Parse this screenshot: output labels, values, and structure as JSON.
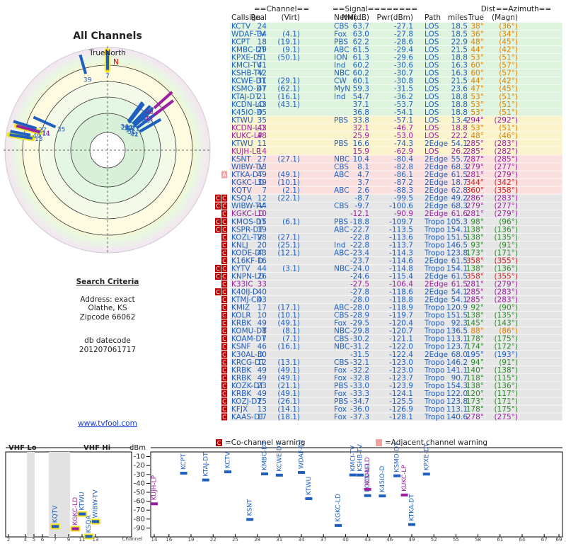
{
  "left": {
    "title": "All Channels",
    "north_label": "TrueNorth",
    "north_mark": "N",
    "criteria_title": "Search Criteria",
    "criteria": [
      "Address: exact",
      "Olathe, KS",
      "Zipcode 66062"
    ],
    "db_title": "db datecode",
    "db_code": "201207061717",
    "link": "www.tvfool.com"
  },
  "table": {
    "group_headers": [
      "==Channel==",
      "==Signal========",
      "Dist",
      "==Azimuth=="
    ],
    "headers": [
      "Callsign",
      "Real",
      "(Virt)",
      "Netwk",
      "NM(dB)",
      "Pwr(dBm)",
      "Path",
      "miles",
      "True",
      "(Magn)"
    ],
    "rows": [
      [
        "KCTV",
        "24",
        null,
        "CBS",
        "63.7",
        "-27.1",
        "LOS",
        "18.5",
        "38°",
        "(36°)"
      ],
      [
        "WDAF-TV",
        "34",
        "(4.1)",
        "Fox",
        "63.0",
        "-27.8",
        "LOS",
        "18.5",
        "36°",
        "(34°)"
      ],
      [
        "KCPT",
        "18",
        "(19.1)",
        "PBS",
        "62.2",
        "-28.6",
        "LOS",
        "22.9",
        "48°",
        "(45°)"
      ],
      [
        "KMBC-DT",
        "29",
        "(9.1)",
        "ABC",
        "61.5",
        "-29.4",
        "LOS",
        "21.5",
        "44°",
        "(42°)"
      ],
      [
        "KPXE-DT",
        "51",
        "(50.1)",
        "ION",
        "61.3",
        "-29.6",
        "LOS",
        "18.8",
        "53°",
        "(51°)"
      ],
      [
        "KMCI-TV",
        "41",
        null,
        "Ind",
        "60.2",
        "-30.6",
        "LOS",
        "16.3",
        "60°",
        "(57°)"
      ],
      [
        "KSHB-TV",
        "42",
        null,
        "NBC",
        "60.2",
        "-30.7",
        "LOS",
        "16.3",
        "60°",
        "(57°)"
      ],
      [
        "KCWE-DT",
        "31",
        "(29.1)",
        "CW",
        "60.1",
        "-30.8",
        "LOS",
        "21.5",
        "44°",
        "(42°)"
      ],
      [
        "KSMO-DT",
        "47",
        "(62.1)",
        "MyN",
        "59.3",
        "-31.5",
        "LOS",
        "23.6",
        "47°",
        "(45°)"
      ],
      [
        "KTAJ-DT",
        "21",
        "(16.1)",
        "Ind",
        "54.7",
        "-36.2",
        "LOS",
        "18.8",
        "53°",
        "(51°)"
      ],
      [
        "KCDN-LD",
        "43",
        "(43.1)",
        null,
        "37.1",
        "-53.7",
        "LOS",
        "18.8",
        "53°",
        "(51°)"
      ],
      [
        "K45IO-D",
        "45",
        null,
        null,
        "36.8",
        "-54.1",
        "LOS",
        "18.8",
        "53°",
        "(51°)"
      ],
      [
        "KTWU",
        "35",
        null,
        "PBS",
        "33.8",
        "-57.1",
        "LOS",
        "13.4",
        "294°",
        "(292°)"
      ],
      [
        "KCDN-LD",
        "43",
        null,
        null,
        "32.1",
        "-46.7",
        "LOS",
        "18.8",
        "53°",
        "(51°)"
      ],
      [
        "KUKC-LP",
        "48",
        null,
        null,
        "25.9",
        "-53.0",
        "LOS",
        "22.2",
        "48°",
        "(46°)"
      ],
      [
        "KTWU",
        "11",
        null,
        "PBS",
        "16.6",
        "-74.3",
        "2Edge",
        "54.1",
        "285°",
        "(283°)"
      ],
      [
        "KUJH-LP",
        "14",
        null,
        null,
        "15.9",
        "-62.9",
        "LOS",
        "26.2",
        "285°",
        "(282°)"
      ],
      [
        "KSNT",
        "27",
        "(27.1)",
        "NBC",
        "10.4",
        "-80.4",
        "2Edge",
        "55.7",
        "287°",
        "(285°)"
      ],
      [
        "WIBW-TV",
        "13",
        null,
        "CBS",
        "8.1",
        "-82.8",
        "2Edge",
        "68.3",
        "279°",
        "(277°)"
      ],
      [
        "KTKA-DT",
        "49",
        "(49.1)",
        "ABC",
        "4.7",
        "-86.1",
        "2Edge",
        "61.5",
        "281°",
        "(279°)"
      ],
      [
        "KGKC-LD",
        "39",
        "(10.1)",
        null,
        "3.7",
        "-87.2",
        "2Edge",
        "18.7",
        "344°",
        "(342°)"
      ],
      [
        "KQTV",
        "7",
        "(2.1)",
        "ABC",
        "2.6",
        "-88.3",
        "2Edge",
        "62.8",
        "360°",
        "(358°)"
      ],
      [
        "KSQA",
        "12",
        "(22.1)",
        null,
        "-8.7",
        "-99.5",
        "2Edge",
        "49.2",
        "286°",
        "(283°)"
      ],
      [
        "WIBW-TV",
        "44",
        null,
        "CBS",
        "-9.7",
        "-100.6",
        "2Edge",
        "68.3",
        "279°",
        "(277°)"
      ],
      [
        "KGKC-LD",
        "10",
        null,
        null,
        "-12.1",
        "-90.9",
        "2Edge",
        "61.6",
        "281°",
        "(279°)"
      ],
      [
        "KMOS-DT",
        "15",
        "(6.1)",
        "PBS",
        "-18.8",
        "-109.7",
        "Tropo",
        "105.3",
        "98°",
        "(96°)"
      ],
      [
        "KSPR-DT",
        "19",
        null,
        "ABC",
        "-22.7",
        "-113.5",
        "Tropo",
        "154.1",
        "138°",
        "(136°)"
      ],
      [
        "KOZL-TV",
        "28",
        "(27.1)",
        null,
        "-22.8",
        "-113.6",
        "Tropo",
        "151.5",
        "138°",
        "(135°)"
      ],
      [
        "KNLJ",
        "20",
        "(25.1)",
        "Ind",
        "-22.8",
        "-113.7",
        "Tropo",
        "146.5",
        "93°",
        "(91°)"
      ],
      [
        "KODE-DT",
        "43",
        "(12.1)",
        "ABC",
        "-23.4",
        "-114.3",
        "Tropo",
        "123.8",
        "173°",
        "(171°)"
      ],
      [
        "K16KF-D",
        "16",
        null,
        null,
        "-23.7",
        "-114.6",
        "2Edge",
        "61.5",
        "358°",
        "(355°)"
      ],
      [
        "KYTV",
        "44",
        "(3.1)",
        "NBC",
        "-24.0",
        "-114.8",
        "Tropo",
        "154.1",
        "138°",
        "(136°)"
      ],
      [
        "KNPN-LD",
        "26",
        null,
        null,
        "-24.6",
        "-115.4",
        "2Edge",
        "61.5",
        "358°",
        "(355°)"
      ],
      [
        "K33IC",
        "33",
        null,
        null,
        "-27.5",
        "-106.4",
        "2Edge",
        "61.5",
        "281°",
        "(279°)"
      ],
      [
        "K40IJ-D",
        "40",
        null,
        null,
        "-27.8",
        "-118.6",
        "2Edge",
        "54.1",
        "285°",
        "(283°)"
      ],
      [
        "KTMJ-CD",
        "43",
        null,
        null,
        "-28.0",
        "-118.8",
        "2Edge",
        "54.1",
        "285°",
        "(283°)"
      ],
      [
        "KMIZ",
        "17",
        "(17.1)",
        "ABC",
        "-28.0",
        "-118.9",
        "Tropo",
        "120.9",
        "92°",
        "(90°)"
      ],
      [
        "KOLR",
        "10",
        "(10.1)",
        "CBS",
        "-28.9",
        "-119.7",
        "Tropo",
        "151.5",
        "138°",
        "(135°)"
      ],
      [
        "KRBK",
        "49",
        "(49.1)",
        "Fox",
        "-29.5",
        "-120.4",
        "Tropo",
        "92.3",
        "145°",
        "(143°)"
      ],
      [
        "KOMU-DT",
        "8",
        "(8.1)",
        "NBC",
        "-29.8",
        "-120.7",
        "Tropo",
        "136.5",
        "88°",
        "(86°)"
      ],
      [
        "KOAM-DT",
        "7",
        "(7.1)",
        "CBS",
        "-30.2",
        "-121.1",
        "Tropo",
        "113.1",
        "178°",
        "(175°)"
      ],
      [
        "KSNF",
        "46",
        "(16.1)",
        "NBC",
        "-31.2",
        "-122.0",
        "Tropo",
        "123.7",
        "174°",
        "(172°)"
      ],
      [
        "K30AL-D",
        "30",
        null,
        null,
        "-31.5",
        "-122.4",
        "2Edge",
        "68.0",
        "195°",
        "(193°)"
      ],
      [
        "KRCG-DT",
        "12",
        "(13.1)",
        "CBS",
        "-32.1",
        "-123.0",
        "Tropo",
        "146.2",
        "94°",
        "(91°)"
      ],
      [
        "KRBK",
        "49",
        "(49.1)",
        "Fox",
        "-32.2",
        "-123.0",
        "Tropo",
        "141.1",
        "140°",
        "(138°)"
      ],
      [
        "KRBK",
        "49",
        "(49.1)",
        "Fox",
        "-32.8",
        "-123.7",
        "Tropo",
        "90.7",
        "118°",
        "(115°)"
      ],
      [
        "KOZK-DT",
        "23",
        "(21.1)",
        "PBS",
        "-33.0",
        "-123.9",
        "Tropo",
        "154.3",
        "138°",
        "(136°)"
      ],
      [
        "KRBK",
        "49",
        "(49.1)",
        "Fox",
        "-33.3",
        "-124.1",
        "Tropo",
        "122.0",
        "120°",
        "(117°)"
      ],
      [
        "KOZJ-DT",
        "25",
        "(26.1)",
        "PBS",
        "-34.7",
        "-125.5",
        "Tropo",
        "123.8",
        "173°",
        "(171°)"
      ],
      [
        "KFJX",
        "13",
        "(14.1)",
        "Fox",
        "-36.0",
        "-126.9",
        "Tropo",
        "113.1",
        "178°",
        "(175°)"
      ],
      [
        "KAAS-DT",
        "17",
        "(18.1)",
        "Fox",
        "-37.3",
        "-128.1",
        "Tropo",
        "140.6",
        "278°",
        "(275°)"
      ]
    ],
    "row_colors": [
      "#1f5fbf",
      "#1f5fbf",
      "#1f5fbf",
      "#1f5fbf",
      "#1f5fbf",
      "#1f5fbf",
      "#1f5fbf",
      "#1f5fbf",
      "#1f5fbf",
      "#1f5fbf",
      "#1f5fbf",
      "#1f5fbf",
      "#1f5fbf",
      "#9b1fa0",
      "#9b1fa0",
      "#1f5fbf",
      "#9b1fa0",
      "#1f5fbf",
      "#1f5fbf",
      "#1f5fbf",
      "#1f5fbf",
      "#1f5fbf",
      "#1f5fbf",
      "#1f5fbf",
      "#9b1fa0",
      "#1f5fbf",
      "#1f5fbf",
      "#1f5fbf",
      "#1f5fbf",
      "#1f5fbf",
      "#1f5fbf",
      "#1f5fbf",
      "#1f5fbf",
      "#9b1fa0",
      "#1f5fbf",
      "#1f5fbf",
      "#1f5fbf",
      "#1f5fbf",
      "#1f5fbf",
      "#1f5fbf",
      "#1f5fbf",
      "#1f5fbf",
      "#1f5fbf",
      "#1f5fbf",
      "#1f5fbf",
      "#1f5fbf",
      "#1f5fbf",
      "#1f5fbf",
      "#1f5fbf",
      "#1f5fbf",
      "#1f5fbf"
    ],
    "warnings": [
      [],
      [],
      [],
      [],
      [],
      [],
      [],
      [],
      [],
      [],
      [],
      [],
      [],
      [],
      [],
      [],
      [],
      [],
      [],
      [
        "A"
      ],
      [],
      [],
      [
        "C",
        "C"
      ],
      [
        "C",
        "C"
      ],
      [
        "C"
      ],
      [
        "C",
        "C"
      ],
      [
        "C",
        "C"
      ],
      [
        "C"
      ],
      [
        "C"
      ],
      [
        "C"
      ],
      [
        "C"
      ],
      [
        "C",
        "C"
      ],
      [
        "C",
        "C"
      ],
      [
        "C"
      ],
      [
        "C",
        "C"
      ],
      [
        "C"
      ],
      [
        "C"
      ],
      [
        "C"
      ],
      [
        "C"
      ],
      [
        "C"
      ],
      [
        "C"
      ],
      [
        "C"
      ],
      [
        "C"
      ],
      [
        "C"
      ],
      [
        "C"
      ],
      [
        "C"
      ],
      [
        "C"
      ],
      [
        "C"
      ],
      [
        "C"
      ],
      [
        "C"
      ],
      [
        "C"
      ]
    ]
  },
  "spectrum": {
    "legend_co_box": "C",
    "legend_co": "=Co-channel warning",
    "legend_adj": "=Adjacent channel warning",
    "vhf_lo_title": "VHF Lo",
    "vhf_hi_title": "VHF Hi",
    "y_title": "dBm",
    "x_title": "Channel",
    "ylim": [
      -100,
      0
    ],
    "yticks": [
      -10,
      -20,
      -30,
      -40,
      -50,
      -60,
      -70,
      -80,
      -90
    ],
    "vhf_lo_xlim": [
      2,
      6
    ],
    "vhf_lo_ticks": [
      2,
      4,
      5,
      6
    ],
    "vhf_hi_xlim": [
      7,
      13
    ],
    "vhf_hi_ticks": [
      7,
      9,
      11,
      13
    ],
    "uhf_xlim": [
      14,
      69
    ],
    "uhf_ticks": [
      14,
      16,
      19,
      22,
      25,
      28,
      31,
      34,
      37,
      40,
      43,
      46,
      49,
      52,
      55,
      58,
      61,
      64,
      67,
      69
    ],
    "highlight_color": "#f0e020"
  }
}
